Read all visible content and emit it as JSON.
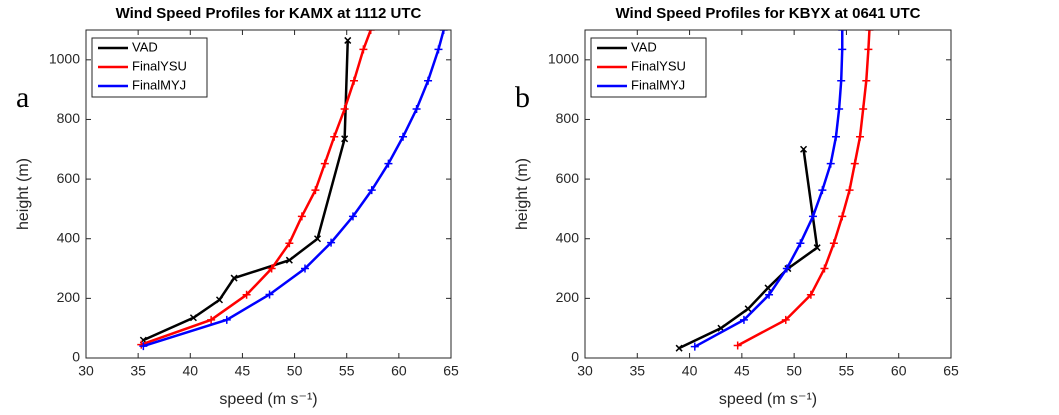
{
  "chart_data": [
    {
      "type": "line",
      "title": "Wind Speed Profiles for KAMX at 1112 UTC",
      "panel_label": "a",
      "xlabel": "speed (m s⁻¹)",
      "ylabel": "height (m)",
      "xlim": [
        30,
        65
      ],
      "xticks": [
        30,
        35,
        40,
        45,
        50,
        55,
        60,
        65
      ],
      "ylim": [
        0,
        1100
      ],
      "yticks": [
        0,
        200,
        400,
        600,
        800,
        1000
      ],
      "legend": "upper left",
      "series": [
        {
          "name": "VAD",
          "color": "#000000",
          "marker": "x",
          "x": [
            35.5,
            40.3,
            42.8,
            44.2,
            49.5,
            52.2,
            54.8,
            55.1
          ],
          "values": [
            60,
            135,
            195,
            268,
            328,
            400,
            735,
            1065
          ]
        },
        {
          "name": "FinalYSU",
          "color": "#ff0000",
          "marker": "+",
          "x": [
            35.3,
            42,
            45.4,
            47.8,
            49.5,
            50.7,
            52,
            52.9,
            53.8,
            54.8,
            55.7,
            56.6,
            57.3
          ],
          "values": [
            45,
            128,
            212,
            300,
            385,
            475,
            563,
            652,
            742,
            835,
            930,
            1035,
            1100
          ]
        },
        {
          "name": "FinalMYJ",
          "color": "#0000ff",
          "marker": "+",
          "x": [
            35.5,
            43.5,
            47.6,
            51,
            53.5,
            55.6,
            57.4,
            59,
            60.4,
            61.7,
            62.8,
            63.8,
            64.3
          ],
          "values": [
            40,
            128,
            213,
            300,
            387,
            475,
            563,
            652,
            742,
            835,
            930,
            1035,
            1100
          ]
        }
      ]
    },
    {
      "type": "line",
      "title": "Wind Speed Profiles for KBYX at 0641 UTC",
      "panel_label": "b",
      "xlabel": "speed (m s⁻¹)",
      "ylabel": "height (m)",
      "xlim": [
        30,
        65
      ],
      "xticks": [
        30,
        35,
        40,
        45,
        50,
        55,
        60,
        65
      ],
      "ylim": [
        0,
        1100
      ],
      "yticks": [
        0,
        200,
        400,
        600,
        800,
        1000
      ],
      "legend": "upper left",
      "series": [
        {
          "name": "VAD",
          "color": "#000000",
          "marker": "x",
          "x": [
            39,
            43,
            45.6,
            47.5,
            49.4,
            52.2,
            50.9
          ],
          "values": [
            33,
            100,
            165,
            235,
            300,
            370,
            700
          ]
        },
        {
          "name": "FinalYSU",
          "color": "#ff0000",
          "marker": "+",
          "x": [
            44.6,
            49.2,
            51.6,
            52.9,
            53.8,
            54.6,
            55.3,
            55.8,
            56.3,
            56.6,
            56.9,
            57.1,
            57.2
          ],
          "values": [
            42,
            128,
            212,
            300,
            385,
            475,
            563,
            652,
            742,
            835,
            930,
            1035,
            1100
          ]
        },
        {
          "name": "FinalMYJ",
          "color": "#0000ff",
          "marker": "+",
          "x": [
            40.5,
            45.2,
            47.6,
            49.3,
            50.6,
            51.8,
            52.7,
            53.5,
            54,
            54.3,
            54.5,
            54.6,
            54.6
          ],
          "values": [
            38,
            128,
            212,
            300,
            385,
            475,
            563,
            652,
            742,
            835,
            930,
            1035,
            1100
          ]
        }
      ]
    }
  ]
}
